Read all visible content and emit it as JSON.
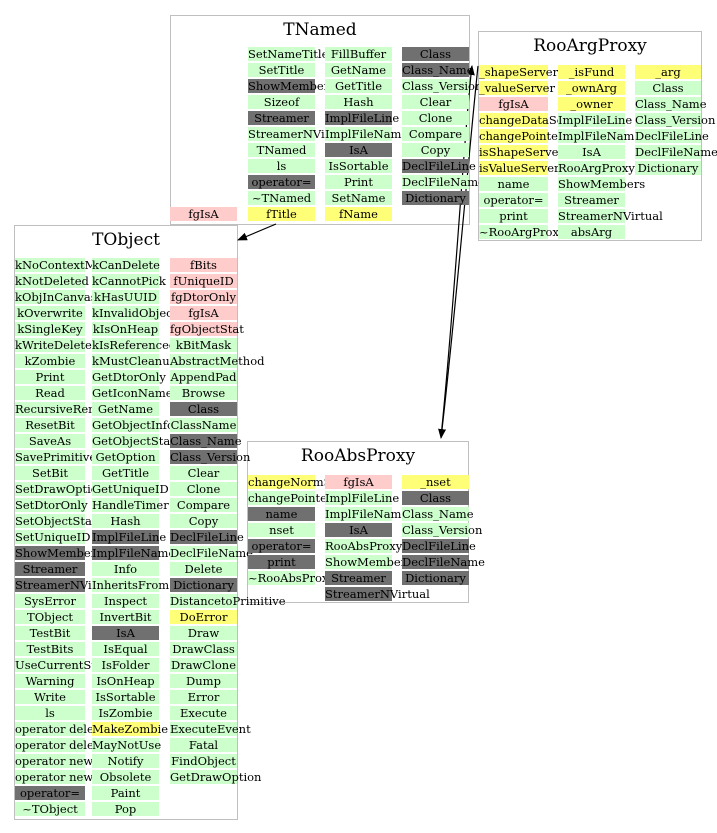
{
  "colors": {
    "green": "#ccffcc",
    "gray": "#707070",
    "pink": "#ffcccc",
    "yellow": "#ffff77",
    "border": "#bfbfbf"
  },
  "classes": [
    {
      "id": "tnamed",
      "title": "TNamed",
      "columns": [
        [
          [
            "SetNameTitle",
            "g"
          ],
          [
            "SetTitle",
            "g"
          ],
          [
            "ShowMembers",
            "x"
          ],
          [
            "Sizeof",
            "g"
          ],
          [
            "Streamer",
            "x"
          ],
          [
            "StreamerNVirtual",
            "g"
          ],
          [
            "TNamed",
            "g"
          ],
          [
            "ls",
            "g"
          ],
          [
            "operator=",
            "x"
          ],
          [
            "~TNamed",
            "g"
          ],
          [
            "fTitle",
            "y"
          ]
        ],
        [
          [
            "FillBuffer",
            "g"
          ],
          [
            "GetName",
            "g"
          ],
          [
            "GetTitle",
            "g"
          ],
          [
            "Hash",
            "g"
          ],
          [
            "ImplFileLine",
            "x"
          ],
          [
            "ImplFileName",
            "g"
          ],
          [
            "IsA",
            "x"
          ],
          [
            "IsSortable",
            "g"
          ],
          [
            "Print",
            "g"
          ],
          [
            "SetName",
            "g"
          ],
          [
            "fName",
            "y"
          ]
        ],
        [
          [
            "Class",
            "x"
          ],
          [
            "Class_Name",
            "x"
          ],
          [
            "Class_Version",
            "g"
          ],
          [
            "Clear",
            "g"
          ],
          [
            "Clone",
            "g"
          ],
          [
            "Compare",
            "g"
          ],
          [
            "Copy",
            "g"
          ],
          [
            "DeclFileLine",
            "x"
          ],
          [
            "DeclFileName",
            "g"
          ],
          [
            "Dictionary",
            "x"
          ]
        ]
      ],
      "outside": [
        [
          "fgIsA",
          "p"
        ]
      ]
    },
    {
      "id": "rooargproxy",
      "title": "RooArgProxy",
      "columns": [
        [
          [
            "_shapeServer",
            "y"
          ],
          [
            "_valueServer",
            "y"
          ],
          [
            "fgIsA",
            "p"
          ],
          [
            "changeDataSet",
            "y"
          ],
          [
            "changePointer",
            "y"
          ],
          [
            "isShapeServer",
            "y"
          ],
          [
            "isValueServer",
            "y"
          ],
          [
            "name",
            "g"
          ],
          [
            "operator=",
            "g"
          ],
          [
            "print",
            "g"
          ],
          [
            "~RooArgProxy",
            "g"
          ]
        ],
        [
          [
            "_isFund",
            "y"
          ],
          [
            "_ownArg",
            "y"
          ],
          [
            "_owner",
            "y"
          ],
          [
            "ImplFileLine",
            "g"
          ],
          [
            "ImplFileName",
            "g"
          ],
          [
            "IsA",
            "g"
          ],
          [
            "RooArgProxy",
            "g"
          ],
          [
            "ShowMembers",
            "g"
          ],
          [
            "Streamer",
            "g"
          ],
          [
            "StreamerNVirtual",
            "g"
          ],
          [
            "absArg",
            "g"
          ]
        ],
        [
          [
            "_arg",
            "y"
          ],
          [
            "Class",
            "g"
          ],
          [
            "Class_Name",
            "g"
          ],
          [
            "Class_Version",
            "g"
          ],
          [
            "DeclFileLine",
            "g"
          ],
          [
            "DeclFileName",
            "g"
          ],
          [
            "Dictionary",
            "g"
          ]
        ]
      ]
    },
    {
      "id": "tobject",
      "title": "TObject",
      "columns": [
        [
          [
            "kNoContextMenu",
            "g"
          ],
          [
            "kNotDeleted",
            "g"
          ],
          [
            "kObjInCanvas",
            "g"
          ],
          [
            "kOverwrite",
            "g"
          ],
          [
            "kSingleKey",
            "g"
          ],
          [
            "kWriteDelete",
            "g"
          ],
          [
            "kZombie",
            "g"
          ],
          [
            "Print",
            "g"
          ],
          [
            "Read",
            "g"
          ],
          [
            "RecursiveRemove",
            "g"
          ],
          [
            "ResetBit",
            "g"
          ],
          [
            "SaveAs",
            "g"
          ],
          [
            "SavePrimitive",
            "g"
          ],
          [
            "SetBit",
            "g"
          ],
          [
            "SetDrawOption",
            "g"
          ],
          [
            "SetDtorOnly",
            "g"
          ],
          [
            "SetObjectStat",
            "g"
          ],
          [
            "SetUniqueID",
            "g"
          ],
          [
            "ShowMembers",
            "x"
          ],
          [
            "Streamer",
            "x"
          ],
          [
            "StreamerNVirtual",
            "x"
          ],
          [
            "SysError",
            "g"
          ],
          [
            "TObject",
            "g"
          ],
          [
            "TestBit",
            "g"
          ],
          [
            "TestBits",
            "g"
          ],
          [
            "UseCurrentStyle",
            "g"
          ],
          [
            "Warning",
            "g"
          ],
          [
            "Write",
            "g"
          ],
          [
            "ls",
            "g"
          ],
          [
            "operator delete",
            "g"
          ],
          [
            "operator delete[]",
            "g"
          ],
          [
            "operator new",
            "g"
          ],
          [
            "operator new[]",
            "g"
          ],
          [
            "operator=",
            "x"
          ],
          [
            "~TObject",
            "g"
          ]
        ],
        [
          [
            "kCanDelete",
            "g"
          ],
          [
            "kCannotPick",
            "g"
          ],
          [
            "kHasUUID",
            "g"
          ],
          [
            "kInvalidObject",
            "g"
          ],
          [
            "kIsOnHeap",
            "g"
          ],
          [
            "kIsReferenced",
            "g"
          ],
          [
            "kMustCleanup",
            "g"
          ],
          [
            "GetDtorOnly",
            "g"
          ],
          [
            "GetIconName",
            "g"
          ],
          [
            "GetName",
            "g"
          ],
          [
            "GetObjectInfo",
            "g"
          ],
          [
            "GetObjectStat",
            "g"
          ],
          [
            "GetOption",
            "g"
          ],
          [
            "GetTitle",
            "g"
          ],
          [
            "GetUniqueID",
            "g"
          ],
          [
            "HandleTimer",
            "g"
          ],
          [
            "Hash",
            "g"
          ],
          [
            "ImplFileLine",
            "x"
          ],
          [
            "ImplFileName",
            "x"
          ],
          [
            "Info",
            "g"
          ],
          [
            "InheritsFrom",
            "g"
          ],
          [
            "Inspect",
            "g"
          ],
          [
            "InvertBit",
            "g"
          ],
          [
            "IsA",
            "x"
          ],
          [
            "IsEqual",
            "g"
          ],
          [
            "IsFolder",
            "g"
          ],
          [
            "IsOnHeap",
            "g"
          ],
          [
            "IsSortable",
            "g"
          ],
          [
            "IsZombie",
            "g"
          ],
          [
            "MakeZombie",
            "y"
          ],
          [
            "MayNotUse",
            "g"
          ],
          [
            "Notify",
            "g"
          ],
          [
            "Obsolete",
            "g"
          ],
          [
            "Paint",
            "g"
          ],
          [
            "Pop",
            "g"
          ]
        ],
        [
          [
            "fBits",
            "p"
          ],
          [
            "fUniqueID",
            "p"
          ],
          [
            "fgDtorOnly",
            "p"
          ],
          [
            "fgIsA",
            "p"
          ],
          [
            "fgObjectStat",
            "p"
          ],
          [
            "kBitMask",
            "g"
          ],
          [
            "AbstractMethod",
            "g"
          ],
          [
            "AppendPad",
            "g"
          ],
          [
            "Browse",
            "g"
          ],
          [
            "Class",
            "x"
          ],
          [
            "ClassName",
            "g"
          ],
          [
            "Class_Name",
            "x"
          ],
          [
            "Class_Version",
            "x"
          ],
          [
            "Clear",
            "g"
          ],
          [
            "Clone",
            "g"
          ],
          [
            "Compare",
            "g"
          ],
          [
            "Copy",
            "g"
          ],
          [
            "DeclFileLine",
            "x"
          ],
          [
            "DeclFileName",
            "g"
          ],
          [
            "Delete",
            "g"
          ],
          [
            "Dictionary",
            "x"
          ],
          [
            "DistancetoPrimitive",
            "g"
          ],
          [
            "DoError",
            "y"
          ],
          [
            "Draw",
            "g"
          ],
          [
            "DrawClass",
            "g"
          ],
          [
            "DrawClone",
            "g"
          ],
          [
            "Dump",
            "g"
          ],
          [
            "Error",
            "g"
          ],
          [
            "Execute",
            "g"
          ],
          [
            "ExecuteEvent",
            "g"
          ],
          [
            "Fatal",
            "g"
          ],
          [
            "FindObject",
            "g"
          ],
          [
            "GetDrawOption",
            "g"
          ]
        ]
      ]
    },
    {
      "id": "rooabsproxy",
      "title": "RooAbsProxy",
      "columns": [
        [
          [
            "changeNormSet",
            "y"
          ],
          [
            "changePointer",
            "g"
          ],
          [
            "name",
            "x"
          ],
          [
            "nset",
            "g"
          ],
          [
            "operator=",
            "x"
          ],
          [
            "print",
            "x"
          ],
          [
            "~RooAbsProxy",
            "g"
          ]
        ],
        [
          [
            "fgIsA",
            "p"
          ],
          [
            "ImplFileLine",
            "g"
          ],
          [
            "ImplFileName",
            "g"
          ],
          [
            "IsA",
            "x"
          ],
          [
            "RooAbsProxy",
            "g"
          ],
          [
            "ShowMembers",
            "g"
          ],
          [
            "Streamer",
            "x"
          ],
          [
            "StreamerNVirtual",
            "x"
          ]
        ],
        [
          [
            "_nset",
            "y"
          ],
          [
            "Class",
            "x"
          ],
          [
            "Class_Name",
            "g"
          ],
          [
            "Class_Version",
            "g"
          ],
          [
            "DeclFileLine",
            "x"
          ],
          [
            "DeclFileName",
            "x"
          ],
          [
            "Dictionary",
            "x"
          ]
        ]
      ]
    }
  ]
}
